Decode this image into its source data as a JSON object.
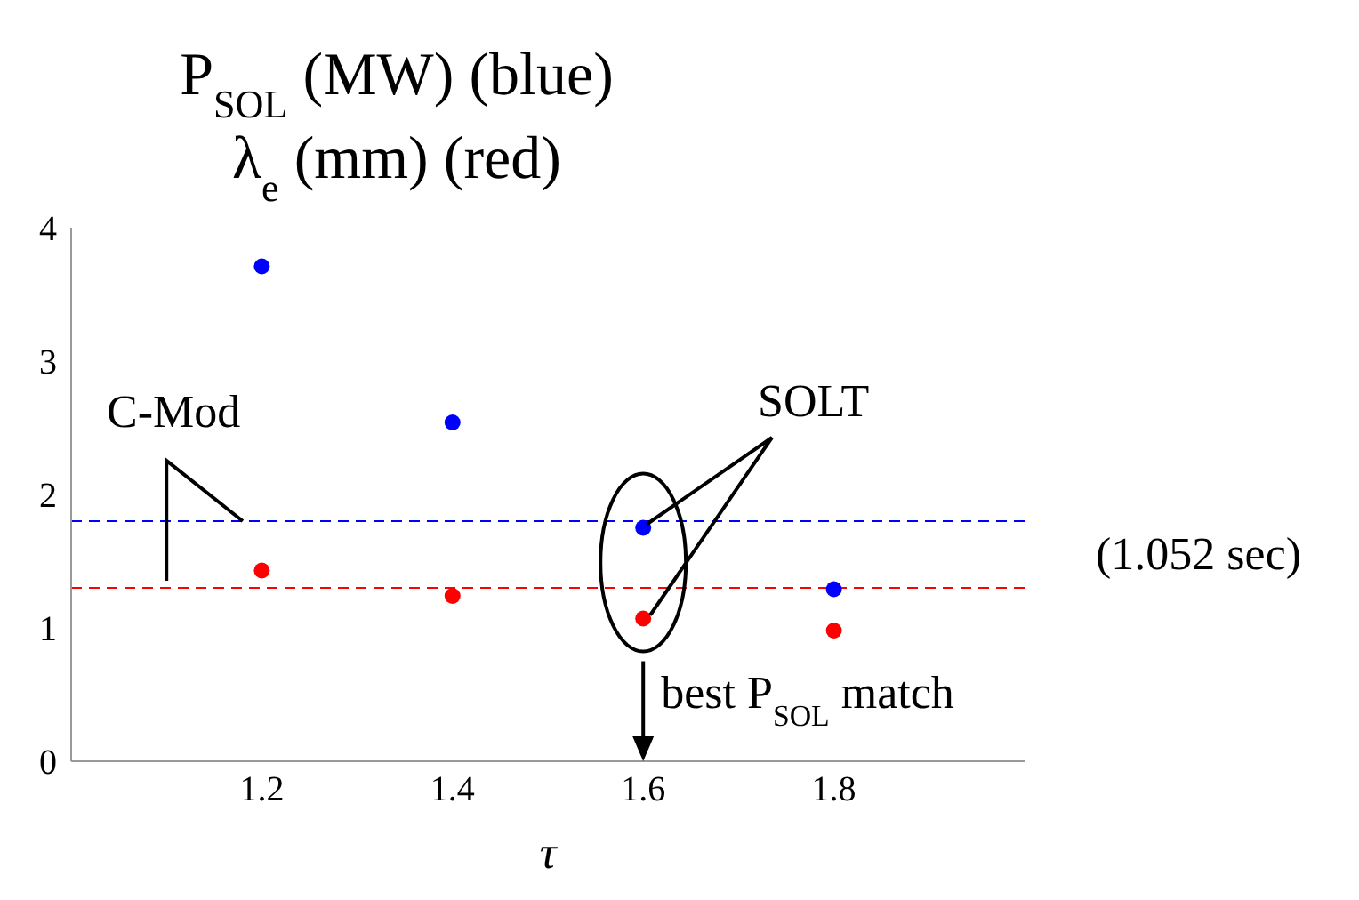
{
  "chart_data": {
    "type": "scatter",
    "title": "P$_{SOL}$ (MW) (blue)",
    "subtitle": "λ$_{e}$ (mm) (red)",
    "xlabel": "τ",
    "x": [
      1.2,
      1.4,
      1.6,
      1.8
    ],
    "series": [
      {
        "color": "#0000ff",
        "values": [
          3.71,
          2.54,
          1.75,
          1.29
        ]
      },
      {
        "color": "#ff0000",
        "values": [
          1.43,
          1.24,
          1.07,
          0.98
        ]
      }
    ],
    "xlim": [
      1,
      2
    ],
    "xticks": [
      1.2,
      1.4,
      1.6,
      1.8
    ],
    "ylim": [
      0,
      4
    ],
    "yticks": [
      0,
      1,
      2,
      3,
      4
    ],
    "ref_lines": [
      {
        "axis": "y",
        "value": 1.8,
        "color": "#0000ff",
        "line_style": "dashed"
      },
      {
        "axis": "y",
        "value": 1.3,
        "color": "#ff0000",
        "line_style": "dashed"
      }
    ],
    "annotations": [
      "C-Mod",
      "SOLT",
      "(1.052 sec)",
      {
        "text": "best P$_{SOL}$ match",
        "x": 1.6,
        "y": 1.07
      }
    ],
    "grid": false,
    "legend": false,
    "marker": "circle"
  }
}
